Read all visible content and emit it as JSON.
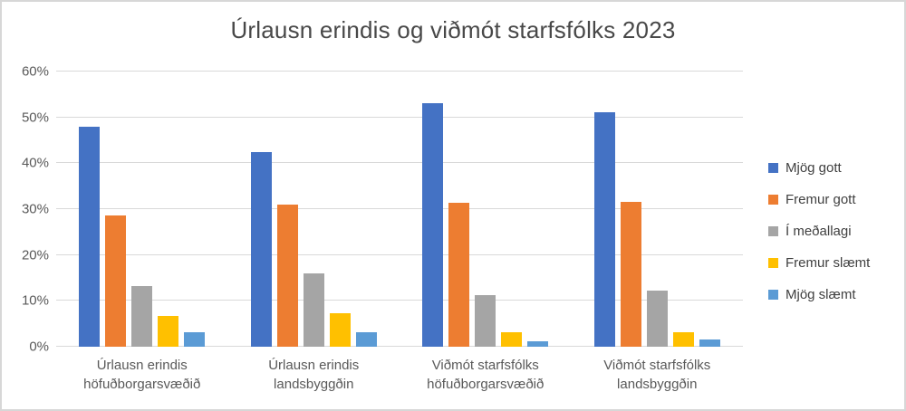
{
  "chart_data": {
    "type": "bar",
    "title": "Úrlausn erindis og viðmót starfsfólks 2023",
    "categories": [
      "Úrlausn erindis höfuðborgarsvæðið",
      "Úrlausn erindis landsbyggðin",
      "Viðmót starfsfólks höfuðborgarsvæðið",
      "Viðmót starfsfólks landsbyggðin"
    ],
    "series": [
      {
        "name": "Mjög gott",
        "color": "#4472C4",
        "values": [
          48.0,
          42.5,
          53.0,
          51.2
        ]
      },
      {
        "name": "Fremur gott",
        "color": "#ED7D31",
        "values": [
          28.7,
          31.0,
          31.3,
          31.5
        ]
      },
      {
        "name": "Í meðallagi",
        "color": "#A5A5A5",
        "values": [
          13.2,
          16.0,
          11.2,
          12.2
        ]
      },
      {
        "name": "Fremur slæmt",
        "color": "#FFC000",
        "values": [
          6.7,
          7.3,
          3.2,
          3.1
        ]
      },
      {
        "name": "Mjög slæmt",
        "color": "#5B9BD5",
        "values": [
          3.2,
          3.2,
          1.1,
          1.5
        ]
      }
    ],
    "xlabel": "",
    "ylabel": "",
    "ylim": [
      0,
      60
    ],
    "yticks": [
      "0%",
      "10%",
      "20%",
      "30%",
      "40%",
      "50%",
      "60%"
    ],
    "grid": true,
    "legend_position": "right",
    "gridline_color": "#d9d9d9",
    "text_color_axis": "#595959",
    "text_color_title": "#484848"
  }
}
